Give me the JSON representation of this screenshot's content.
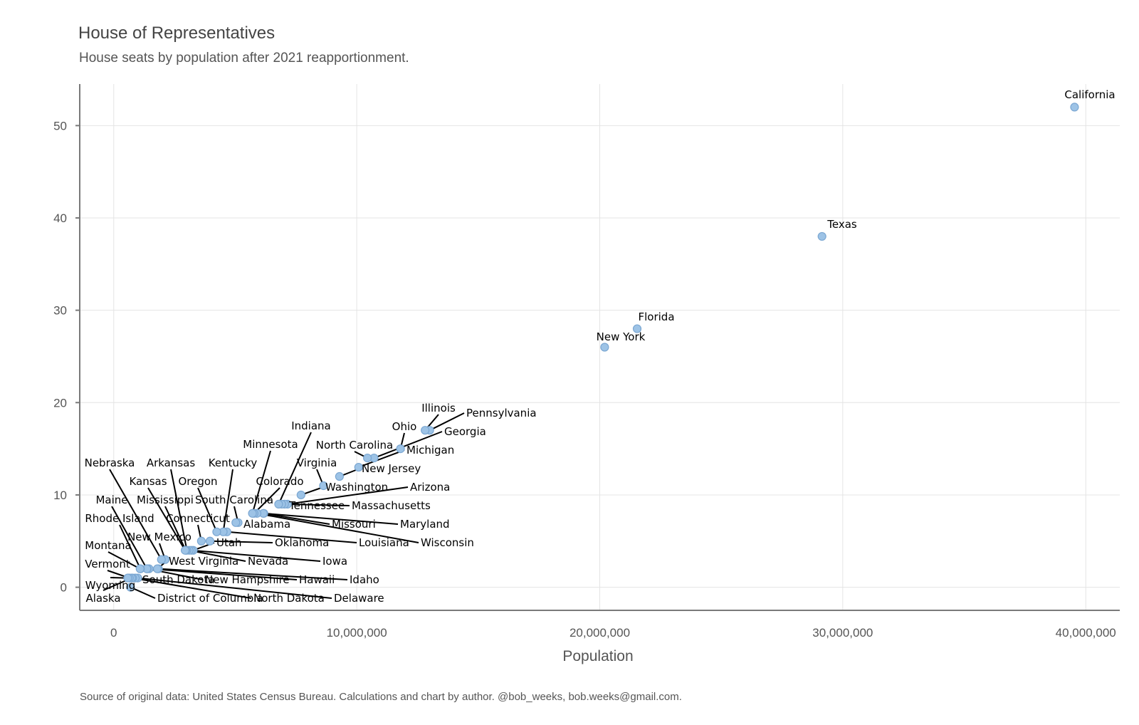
{
  "chart_data": {
    "type": "scatter",
    "title": "House of Representatives",
    "subtitle": "House seats by population after 2021 reapportionment.",
    "xlabel": "Population",
    "ylabel": "",
    "caption": "Source of original data: United States Census Bureau. Calculations and chart by author. @bob_weeks, bob.weeks@gmail.com.",
    "xlim": [
      -1400000,
      41400000
    ],
    "ylim": [
      -2.5,
      54.5
    ],
    "x_ticks": [
      0,
      10000000,
      20000000,
      30000000,
      40000000
    ],
    "x_tick_labels": [
      "0",
      "10,000,000",
      "20,000,000",
      "30,000,000",
      "40,000,000"
    ],
    "y_ticks": [
      0,
      10,
      20,
      30,
      40,
      50
    ],
    "y_tick_labels": [
      "0",
      "10",
      "20",
      "30",
      "40",
      "50"
    ],
    "grid": true,
    "point_color": "#9dc3e6",
    "points": [
      {
        "name": "California",
        "x": 39538223,
        "y": 52
      },
      {
        "name": "Texas",
        "x": 29145505,
        "y": 38
      },
      {
        "name": "Florida",
        "x": 21538187,
        "y": 28
      },
      {
        "name": "New York",
        "x": 20201249,
        "y": 26
      },
      {
        "name": "Pennsylvania",
        "x": 13002700,
        "y": 17
      },
      {
        "name": "Illinois",
        "x": 12812508,
        "y": 17
      },
      {
        "name": "Ohio",
        "x": 11799448,
        "y": 15
      },
      {
        "name": "Georgia",
        "x": 10711908,
        "y": 14
      },
      {
        "name": "North Carolina",
        "x": 10439388,
        "y": 14
      },
      {
        "name": "Michigan",
        "x": 10077331,
        "y": 13
      },
      {
        "name": "New Jersey",
        "x": 9288994,
        "y": 12
      },
      {
        "name": "Virginia",
        "x": 8631393,
        "y": 11
      },
      {
        "name": "Washington",
        "x": 7705281,
        "y": 10
      },
      {
        "name": "Arizona",
        "x": 7151502,
        "y": 9
      },
      {
        "name": "Massachusetts",
        "x": 7029917,
        "y": 9
      },
      {
        "name": "Tennessee",
        "x": 6910840,
        "y": 9
      },
      {
        "name": "Indiana",
        "x": 6785528,
        "y": 9
      },
      {
        "name": "Maryland",
        "x": 6177224,
        "y": 8
      },
      {
        "name": "Missouri",
        "x": 6154913,
        "y": 8
      },
      {
        "name": "Wisconsin",
        "x": 5893718,
        "y": 8
      },
      {
        "name": "Colorado",
        "x": 5773714,
        "y": 8
      },
      {
        "name": "Minnesota",
        "x": 5706494,
        "y": 8
      },
      {
        "name": "South Carolina",
        "x": 5118425,
        "y": 7
      },
      {
        "name": "Alabama",
        "x": 5024279,
        "y": 7
      },
      {
        "name": "Louisiana",
        "x": 4657757,
        "y": 6
      },
      {
        "name": "Kentucky",
        "x": 4505836,
        "y": 6
      },
      {
        "name": "Oregon",
        "x": 4237256,
        "y": 6
      },
      {
        "name": "Oklahoma",
        "x": 3959353,
        "y": 5
      },
      {
        "name": "Connecticut",
        "x": 3605944,
        "y": 5
      },
      {
        "name": "Utah",
        "x": 3271616,
        "y": 4
      },
      {
        "name": "Iowa",
        "x": 3190369,
        "y": 4
      },
      {
        "name": "Nevada",
        "x": 3104614,
        "y": 4
      },
      {
        "name": "Arkansas",
        "x": 3011524,
        "y": 4
      },
      {
        "name": "Mississippi",
        "x": 2961279,
        "y": 4
      },
      {
        "name": "Kansas",
        "x": 2937880,
        "y": 4
      },
      {
        "name": "New Mexico",
        "x": 2117522,
        "y": 3
      },
      {
        "name": "Nebraska",
        "x": 1961504,
        "y": 3
      },
      {
        "name": "Idaho",
        "x": 1839106,
        "y": 2
      },
      {
        "name": "West Virginia",
        "x": 1793716,
        "y": 2
      },
      {
        "name": "Hawaii",
        "x": 1455271,
        "y": 2
      },
      {
        "name": "New Hampshire",
        "x": 1377529,
        "y": 2
      },
      {
        "name": "Maine",
        "x": 1362359,
        "y": 2
      },
      {
        "name": "Rhode Island",
        "x": 1097379,
        "y": 2
      },
      {
        "name": "Montana",
        "x": 1084225,
        "y": 2
      },
      {
        "name": "Delaware",
        "x": 989948,
        "y": 1
      },
      {
        "name": "South Dakota",
        "x": 886667,
        "y": 1
      },
      {
        "name": "North Dakota",
        "x": 779094,
        "y": 1
      },
      {
        "name": "Alaska",
        "x": 733391,
        "y": 1
      },
      {
        "name": "District of Columbia",
        "x": 689545,
        "y": 0
      },
      {
        "name": "Vermont",
        "x": 643077,
        "y": 1
      },
      {
        "name": "Wyoming",
        "x": 576851,
        "y": 1
      }
    ]
  }
}
